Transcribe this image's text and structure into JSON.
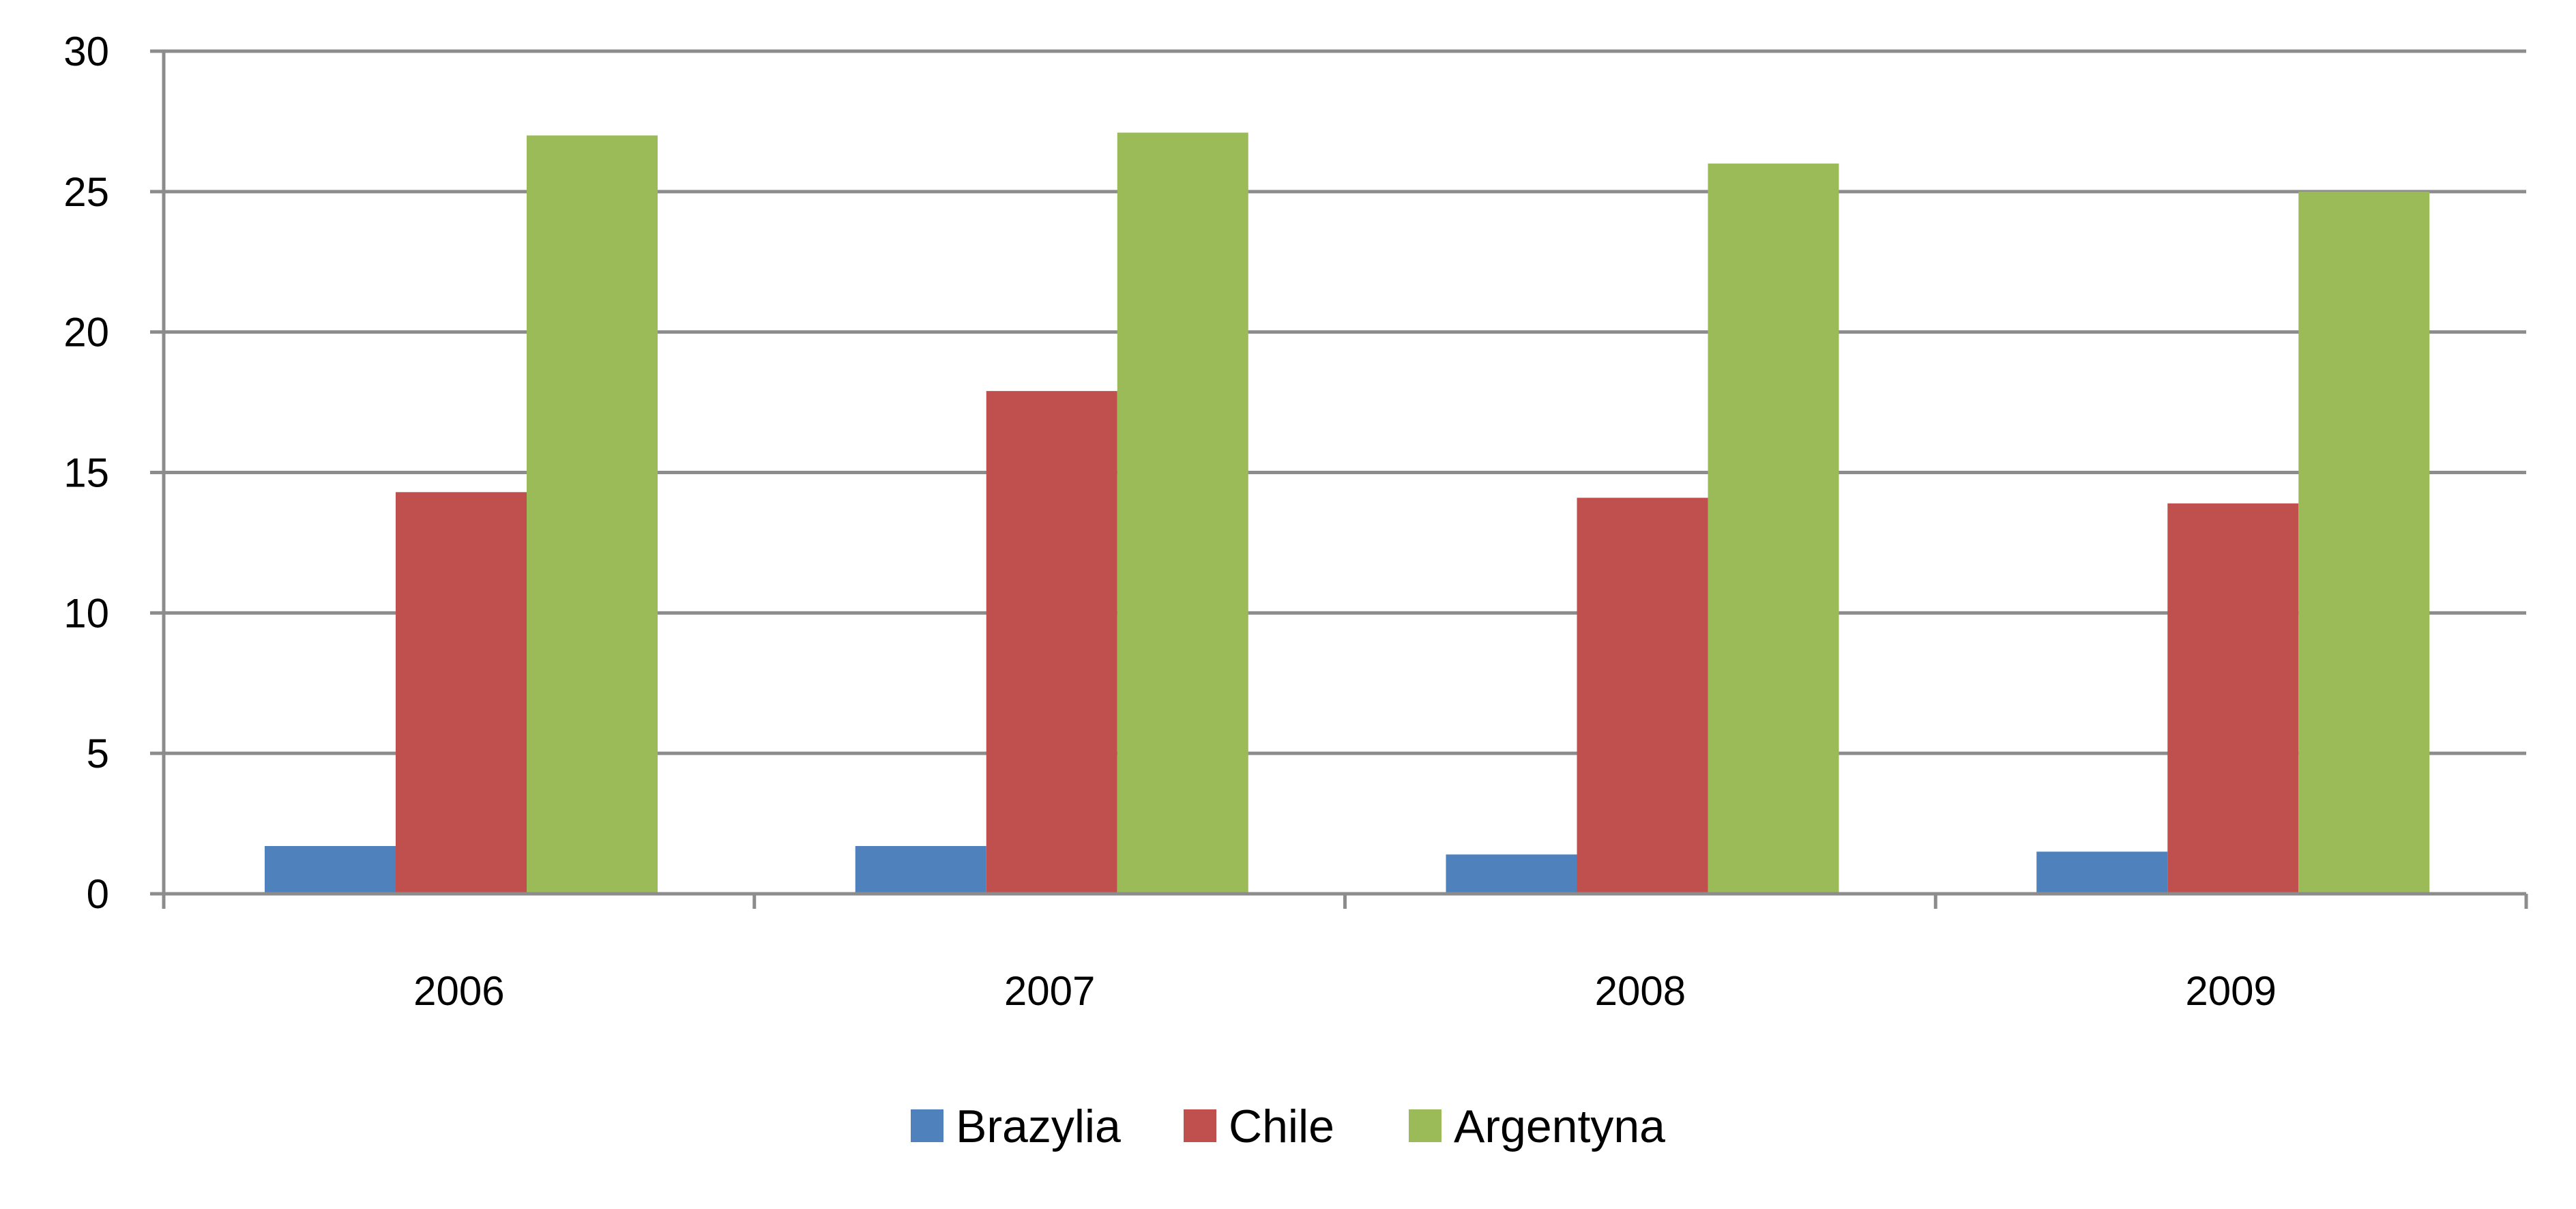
{
  "chart_data": {
    "type": "bar",
    "categories": [
      "2006",
      "2007",
      "2008",
      "2009"
    ],
    "series": [
      {
        "name": "Brazylia",
        "color": "#4f81bd",
        "values": [
          1.7,
          1.7,
          1.4,
          1.5
        ]
      },
      {
        "name": "Chile",
        "color": "#c0504d",
        "values": [
          14.3,
          17.9,
          14.1,
          13.9
        ]
      },
      {
        "name": "Argentyna",
        "color": "#9bbb59",
        "values": [
          27.0,
          27.1,
          26.0,
          25.0
        ]
      }
    ],
    "ylim": [
      0,
      30
    ],
    "yticks": [
      "0",
      "5",
      "10",
      "15",
      "20",
      "25",
      "30"
    ],
    "grid": true,
    "legend_position": "bottom"
  }
}
